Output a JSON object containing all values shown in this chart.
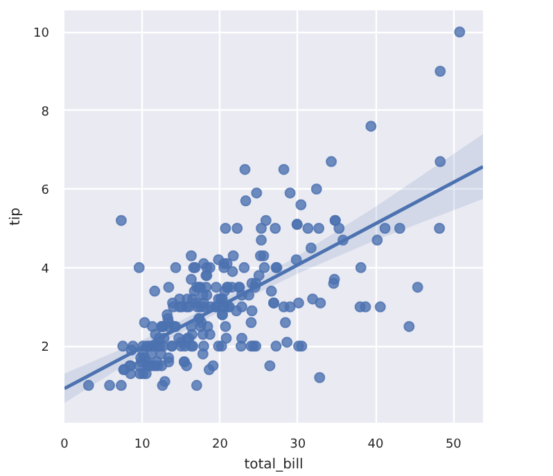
{
  "chart_data": {
    "type": "scatter",
    "xlabel": "total_bill",
    "ylabel": "tip",
    "xlim": [
      0,
      53.8
    ],
    "ylim": [
      0.05,
      10.55
    ],
    "xticks": [
      0,
      10,
      20,
      30,
      40,
      50
    ],
    "yticks": [
      2,
      4,
      6,
      8,
      10
    ],
    "grid": true,
    "series": [
      {
        "marker": "circle",
        "color": "#4c72b0",
        "x": [
          17.0,
          10.3,
          21.0,
          23.7,
          24.6,
          25.3,
          8.8,
          26.9,
          15.0,
          14.8,
          35.3,
          15.4,
          14.8,
          21.6,
          16.3,
          17.0,
          20.6,
          17.9,
          20.3,
          15.8,
          39.4,
          19.8,
          17.8,
          12.7,
          21.7,
          19.6,
          9.6,
          18.4,
          15.1,
          20.7,
          17.8,
          24.1,
          16.3,
          16.9,
          18.7,
          31.3,
          16.0,
          17.5,
          13.9,
          9.7,
          30.4,
          22.2,
          32.4,
          28.6,
          18.0,
          12.5,
          10.3,
          34.8,
          9.9,
          25.6,
          19.5,
          38.0,
          26.4,
          11.2,
          48.3,
          20.3,
          13.8,
          11.0,
          18.3,
          17.6,
          20.1,
          3.1,
          20.2,
          15.0,
          12.0,
          17.1,
          26.9,
          25.3,
          14.7,
          10.5,
          17.9,
          27.2,
          22.8,
          17.3,
          19.4,
          16.7,
          10.1,
          32.7,
          34.8,
          18.3,
          24.7,
          21.2,
          29.0,
          22.5,
          5.8,
          16.3,
          22.8,
          40.2,
          27.3,
          12.0,
          21.0,
          12.5,
          11.3,
          44.3,
          22.4,
          20.9,
          15.4,
          20.5,
          25.2,
          18.2,
          14.3,
          14.0,
          7.3,
          38.1,
          24.0,
          25.7,
          17.3,
          29.9,
          10.7,
          12.4,
          24.1,
          11.7,
          13.4,
          14.3,
          12.5,
          29.8,
          8.5,
          11.4,
          22.8,
          19.1,
          20.3,
          11.2,
          12.3,
          18.3,
          8.5,
          13.2,
          17.5,
          34.3,
          41.2,
          27.1,
          16.4,
          8.4,
          18.6,
          11.9,
          9.8,
          7.5,
          14.1,
          17.3,
          24.6,
          19.8,
          29.9,
          48.2,
          25.0,
          13.4,
          16.5,
          21.5,
          12.7,
          13.8,
          17.5,
          24.5,
          20.8,
          31.7,
          10.6,
          10.6,
          50.8,
          15.8,
          7.3,
          31.9,
          16.8,
          32.9,
          17.9,
          9.6,
          34.6,
          34.7,
          23.3,
          45.4,
          23.2,
          40.6,
          20.7,
          20.9,
          30.5,
          18.2,
          23.1,
          15.7,
          19.8,
          28.4,
          15.5,
          16.6,
          7.6,
          43.1,
          18.7,
          20.5,
          16.5,
          26.6,
          38.7,
          24.3,
          12.8,
          30.1,
          25.9,
          48.3,
          13.3,
          28.2,
          12.9,
          28.2,
          11.6,
          7.7,
          30.1,
          12.2,
          13.4,
          8.6,
          16.0,
          13.4,
          16.3,
          10.1,
          20.5,
          13.3,
          22.1,
          24.0,
          15.7,
          11.6,
          10.8,
          10.1,
          12.6,
          32.8,
          35.8,
          29.0,
          27.2,
          22.7,
          17.8,
          18.8
        ],
        "values": [
          1.0,
          1.7,
          3.5,
          3.3,
          3.6,
          4.7,
          2.0,
          3.1,
          2.0,
          3.2,
          5.0,
          1.6,
          3.0,
          3.9,
          3.7,
          3.5,
          3.4,
          4.1,
          2.8,
          2.2,
          7.6,
          3.2,
          2.3,
          2.0,
          4.3,
          3.0,
          1.5,
          2.5,
          3.0,
          2.5,
          3.3,
          3.6,
          2.0,
          3.1,
          2.3,
          5.0,
          2.2,
          2.5,
          3.1,
          1.3,
          5.6,
          5.0,
          6.0,
          2.1,
          3.0,
          2.5,
          2.6,
          5.2,
          1.6,
          4.3,
          3.5,
          3.0,
          1.5,
          1.8,
          6.7,
          3.2,
          2.0,
          2.0,
          3.8,
          2.6,
          3.2,
          1.0,
          2.0,
          2.1,
          2.0,
          3.0,
          3.1,
          5.0,
          2.2,
          1.3,
          3.1,
          4.0,
          3.0,
          2.7,
          3.0,
          3.4,
          1.8,
          5.0,
          5.2,
          4.0,
          5.9,
          3.0,
          3.0,
          3.5,
          1.0,
          4.3,
          3.3,
          4.7,
          4.0,
          1.5,
          3.0,
          1.5,
          2.5,
          2.5,
          3.5,
          4.1,
          1.6,
          4.1,
          4.3,
          3.8,
          4.0,
          3.0,
          1.0,
          4.0,
          2.6,
          4.0,
          3.5,
          5.1,
          1.5,
          1.8,
          2.9,
          2.3,
          1.7,
          2.5,
          2.5,
          4.2,
          1.5,
          2.0,
          2.2,
          1.5,
          2.8,
          1.5,
          2.0,
          3.3,
          1.3,
          2.8,
          3.5,
          6.7,
          5.0,
          5.0,
          2.3,
          1.5,
          1.4,
          1.6,
          1.7,
          2.0,
          2.5,
          2.7,
          2.0,
          2.0,
          5.1,
          5.0,
          3.8,
          2.6,
          2.0,
          3.5,
          2.5,
          2.0,
          3.0,
          3.5,
          2.2,
          4.5,
          1.6,
          2.0,
          10.0,
          3.2,
          5.2,
          3.2,
          4.0,
          3.1,
          2.0,
          4.0,
          3.6,
          3.7,
          5.7,
          3.5,
          6.5,
          3.0,
          5.0,
          3.5,
          2.0,
          3.5,
          4.0,
          1.5,
          4.2,
          2.6,
          2.0,
          4.0,
          1.4,
          5.0,
          4.0,
          4.0,
          3.2,
          3.4,
          3.0,
          2.0,
          2.2,
          2.0,
          5.2,
          9.0,
          2.5,
          6.5,
          1.1,
          3.0,
          1.5,
          1.4,
          3.1,
          2.2,
          3.5,
          1.9,
          3.0,
          1.6,
          2.5,
          2.0,
          3.0,
          2.7,
          2.9,
          2.0,
          3.0,
          3.4,
          1.5,
          1.3,
          1.0,
          1.2,
          4.7,
          5.9,
          2.0,
          2.0,
          1.8,
          3.0
        ]
      },
      {
        "type": "line",
        "color": "#4c72b0",
        "x": [
          0,
          10,
          20,
          30,
          40,
          53.8
        ],
        "values": [
          0.92,
          1.97,
          3.02,
          4.07,
          5.12,
          6.57
        ],
        "lower": [
          0.55,
          1.8,
          2.88,
          3.85,
          4.7,
          5.75
        ],
        "upper": [
          1.3,
          2.15,
          3.16,
          4.3,
          5.55,
          7.4
        ]
      }
    ]
  }
}
